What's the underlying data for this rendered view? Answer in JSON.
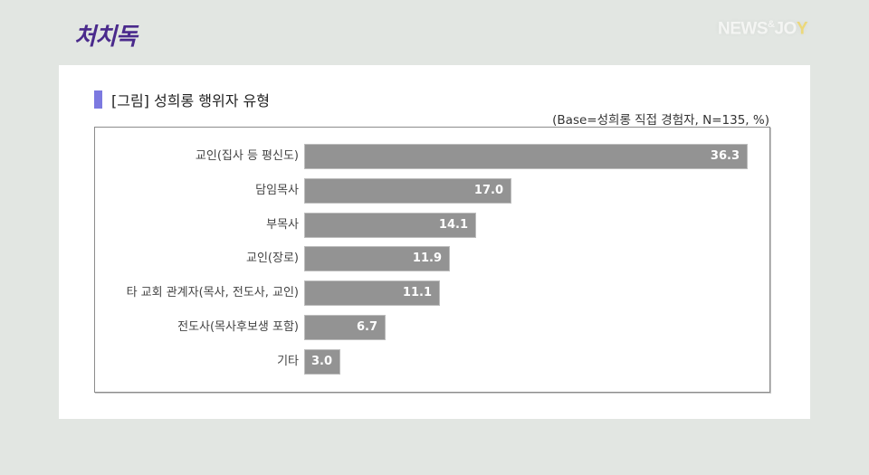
{
  "header": {
    "logo_text": "처치독",
    "brand_text": "NEWS",
    "brand_amp": "&",
    "brand_text2": "JO",
    "brand_slash": "Y"
  },
  "figure": {
    "title": "[그림] 성희롱 행위자 유형",
    "base_note": "(Base=성희롱 직접 경험자, N=135, %)"
  },
  "chart_data": {
    "type": "bar",
    "orientation": "horizontal",
    "title": "[그림] 성희롱 행위자 유형",
    "subtitle": "(Base=성희롱 직접 경험자, N=135, %)",
    "xlabel": "",
    "ylabel": "",
    "unit": "%",
    "categories": [
      "교인(집사 등 평신도)",
      "담임목사",
      "부목사",
      "교인(장로)",
      "타 교회 관계자(목사, 전도사, 교인)",
      "전도사(목사후보생 포함)",
      "기타"
    ],
    "values": [
      36.3,
      17.0,
      14.1,
      11.9,
      11.1,
      6.7,
      3.0
    ],
    "value_labels": [
      "36.3",
      "17.0",
      "14.1",
      "11.9",
      "11.1",
      "6.7",
      "3.0"
    ],
    "bar_color": "#939393",
    "grid": false,
    "legend": "none",
    "xlim": [
      0,
      36.3
    ]
  },
  "colors": {
    "background": "#e2e6e2",
    "logo": "#4a2a8c",
    "title_marker": "#7c79e0",
    "bar": "#939393"
  }
}
